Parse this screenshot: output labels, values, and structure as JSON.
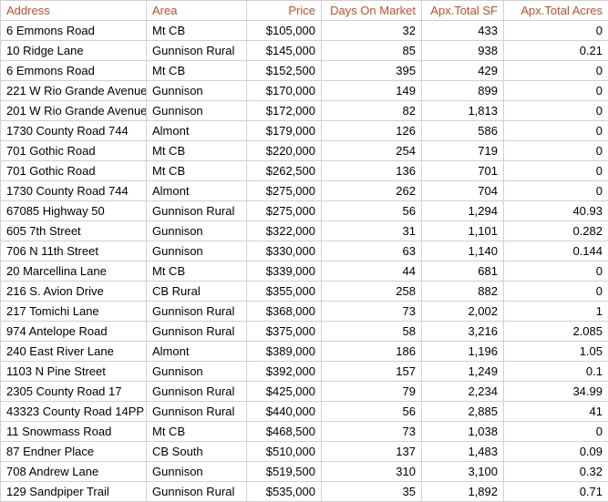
{
  "header_color": "#d84b20",
  "columns": [
    {
      "label": "Address",
      "align": "left"
    },
    {
      "label": "Area",
      "align": "left"
    },
    {
      "label": "Price",
      "align": "right"
    },
    {
      "label": "Days On Market",
      "align": "right"
    },
    {
      "label": "Apx.Total SF",
      "align": "right"
    },
    {
      "label": "Apx.Total Acres",
      "align": "right"
    }
  ],
  "rows": [
    {
      "address": "6 Emmons Road",
      "area": "Mt CB",
      "price": "$105,000",
      "days": "32",
      "sf": "433",
      "acres": "0"
    },
    {
      "address": "10 Ridge Lane",
      "area": "Gunnison Rural",
      "price": "$145,000",
      "days": "85",
      "sf": "938",
      "acres": "0.21"
    },
    {
      "address": "6 Emmons Road",
      "area": "Mt CB",
      "price": "$152,500",
      "days": "395",
      "sf": "429",
      "acres": "0"
    },
    {
      "address": "221 W Rio Grande Avenue",
      "area": "Gunnison",
      "price": "$170,000",
      "days": "149",
      "sf": "899",
      "acres": "0"
    },
    {
      "address": "201 W Rio Grande Avenue",
      "area": "Gunnison",
      "price": "$172,000",
      "days": "82",
      "sf": "1,813",
      "acres": "0"
    },
    {
      "address": "1730 County Road 744",
      "area": "Almont",
      "price": "$179,000",
      "days": "126",
      "sf": "586",
      "acres": "0"
    },
    {
      "address": "701 Gothic Road",
      "area": "Mt CB",
      "price": "$220,000",
      "days": "254",
      "sf": "719",
      "acres": "0"
    },
    {
      "address": "701 Gothic Road",
      "area": "Mt CB",
      "price": "$262,500",
      "days": "136",
      "sf": "701",
      "acres": "0"
    },
    {
      "address": "1730 County Road 744",
      "area": "Almont",
      "price": "$275,000",
      "days": "262",
      "sf": "704",
      "acres": "0"
    },
    {
      "address": "67085 Highway 50",
      "area": "Gunnison Rural",
      "price": "$275,000",
      "days": "56",
      "sf": "1,294",
      "acres": "40.93"
    },
    {
      "address": "605 7th Street",
      "area": "Gunnison",
      "price": "$322,000",
      "days": "31",
      "sf": "1,101",
      "acres": "0.282"
    },
    {
      "address": "706 N 11th Street",
      "area": "Gunnison",
      "price": "$330,000",
      "days": "63",
      "sf": "1,140",
      "acres": "0.144"
    },
    {
      "address": "20 Marcellina Lane",
      "area": "Mt CB",
      "price": "$339,000",
      "days": "44",
      "sf": "681",
      "acres": "0"
    },
    {
      "address": "216 S. Avion Drive",
      "area": "CB Rural",
      "price": "$355,000",
      "days": "258",
      "sf": "882",
      "acres": "0"
    },
    {
      "address": "217 Tomichi Lane",
      "area": "Gunnison Rural",
      "price": "$368,000",
      "days": "73",
      "sf": "2,002",
      "acres": "1"
    },
    {
      "address": "974 Antelope Road",
      "area": "Gunnison Rural",
      "price": "$375,000",
      "days": "58",
      "sf": "3,216",
      "acres": "2.085"
    },
    {
      "address": "240 East River Lane",
      "area": "Almont",
      "price": "$389,000",
      "days": "186",
      "sf": "1,196",
      "acres": "1.05"
    },
    {
      "address": "1103 N Pine Street",
      "area": "Gunnison",
      "price": "$392,000",
      "days": "157",
      "sf": "1,249",
      "acres": "0.1"
    },
    {
      "address": "2305 County Road 17",
      "area": "Gunnison Rural",
      "price": "$425,000",
      "days": "79",
      "sf": "2,234",
      "acres": "34.99"
    },
    {
      "address": "43323 County Road 14PP",
      "area": "Gunnison Rural",
      "price": "$440,000",
      "days": "56",
      "sf": "2,885",
      "acres": "41"
    },
    {
      "address": "11 Snowmass Road",
      "area": "Mt CB",
      "price": "$468,500",
      "days": "73",
      "sf": "1,038",
      "acres": "0"
    },
    {
      "address": "87 Endner Place",
      "area": "CB South",
      "price": "$510,000",
      "days": "137",
      "sf": "1,483",
      "acres": "0.09"
    },
    {
      "address": "708 Andrew Lane",
      "area": "Gunnison",
      "price": "$519,500",
      "days": "310",
      "sf": "3,100",
      "acres": "0.32"
    },
    {
      "address": "129 Sandpiper Trail",
      "area": "Gunnison Rural",
      "price": "$535,000",
      "days": "35",
      "sf": "1,892",
      "acres": "0.71"
    }
  ]
}
